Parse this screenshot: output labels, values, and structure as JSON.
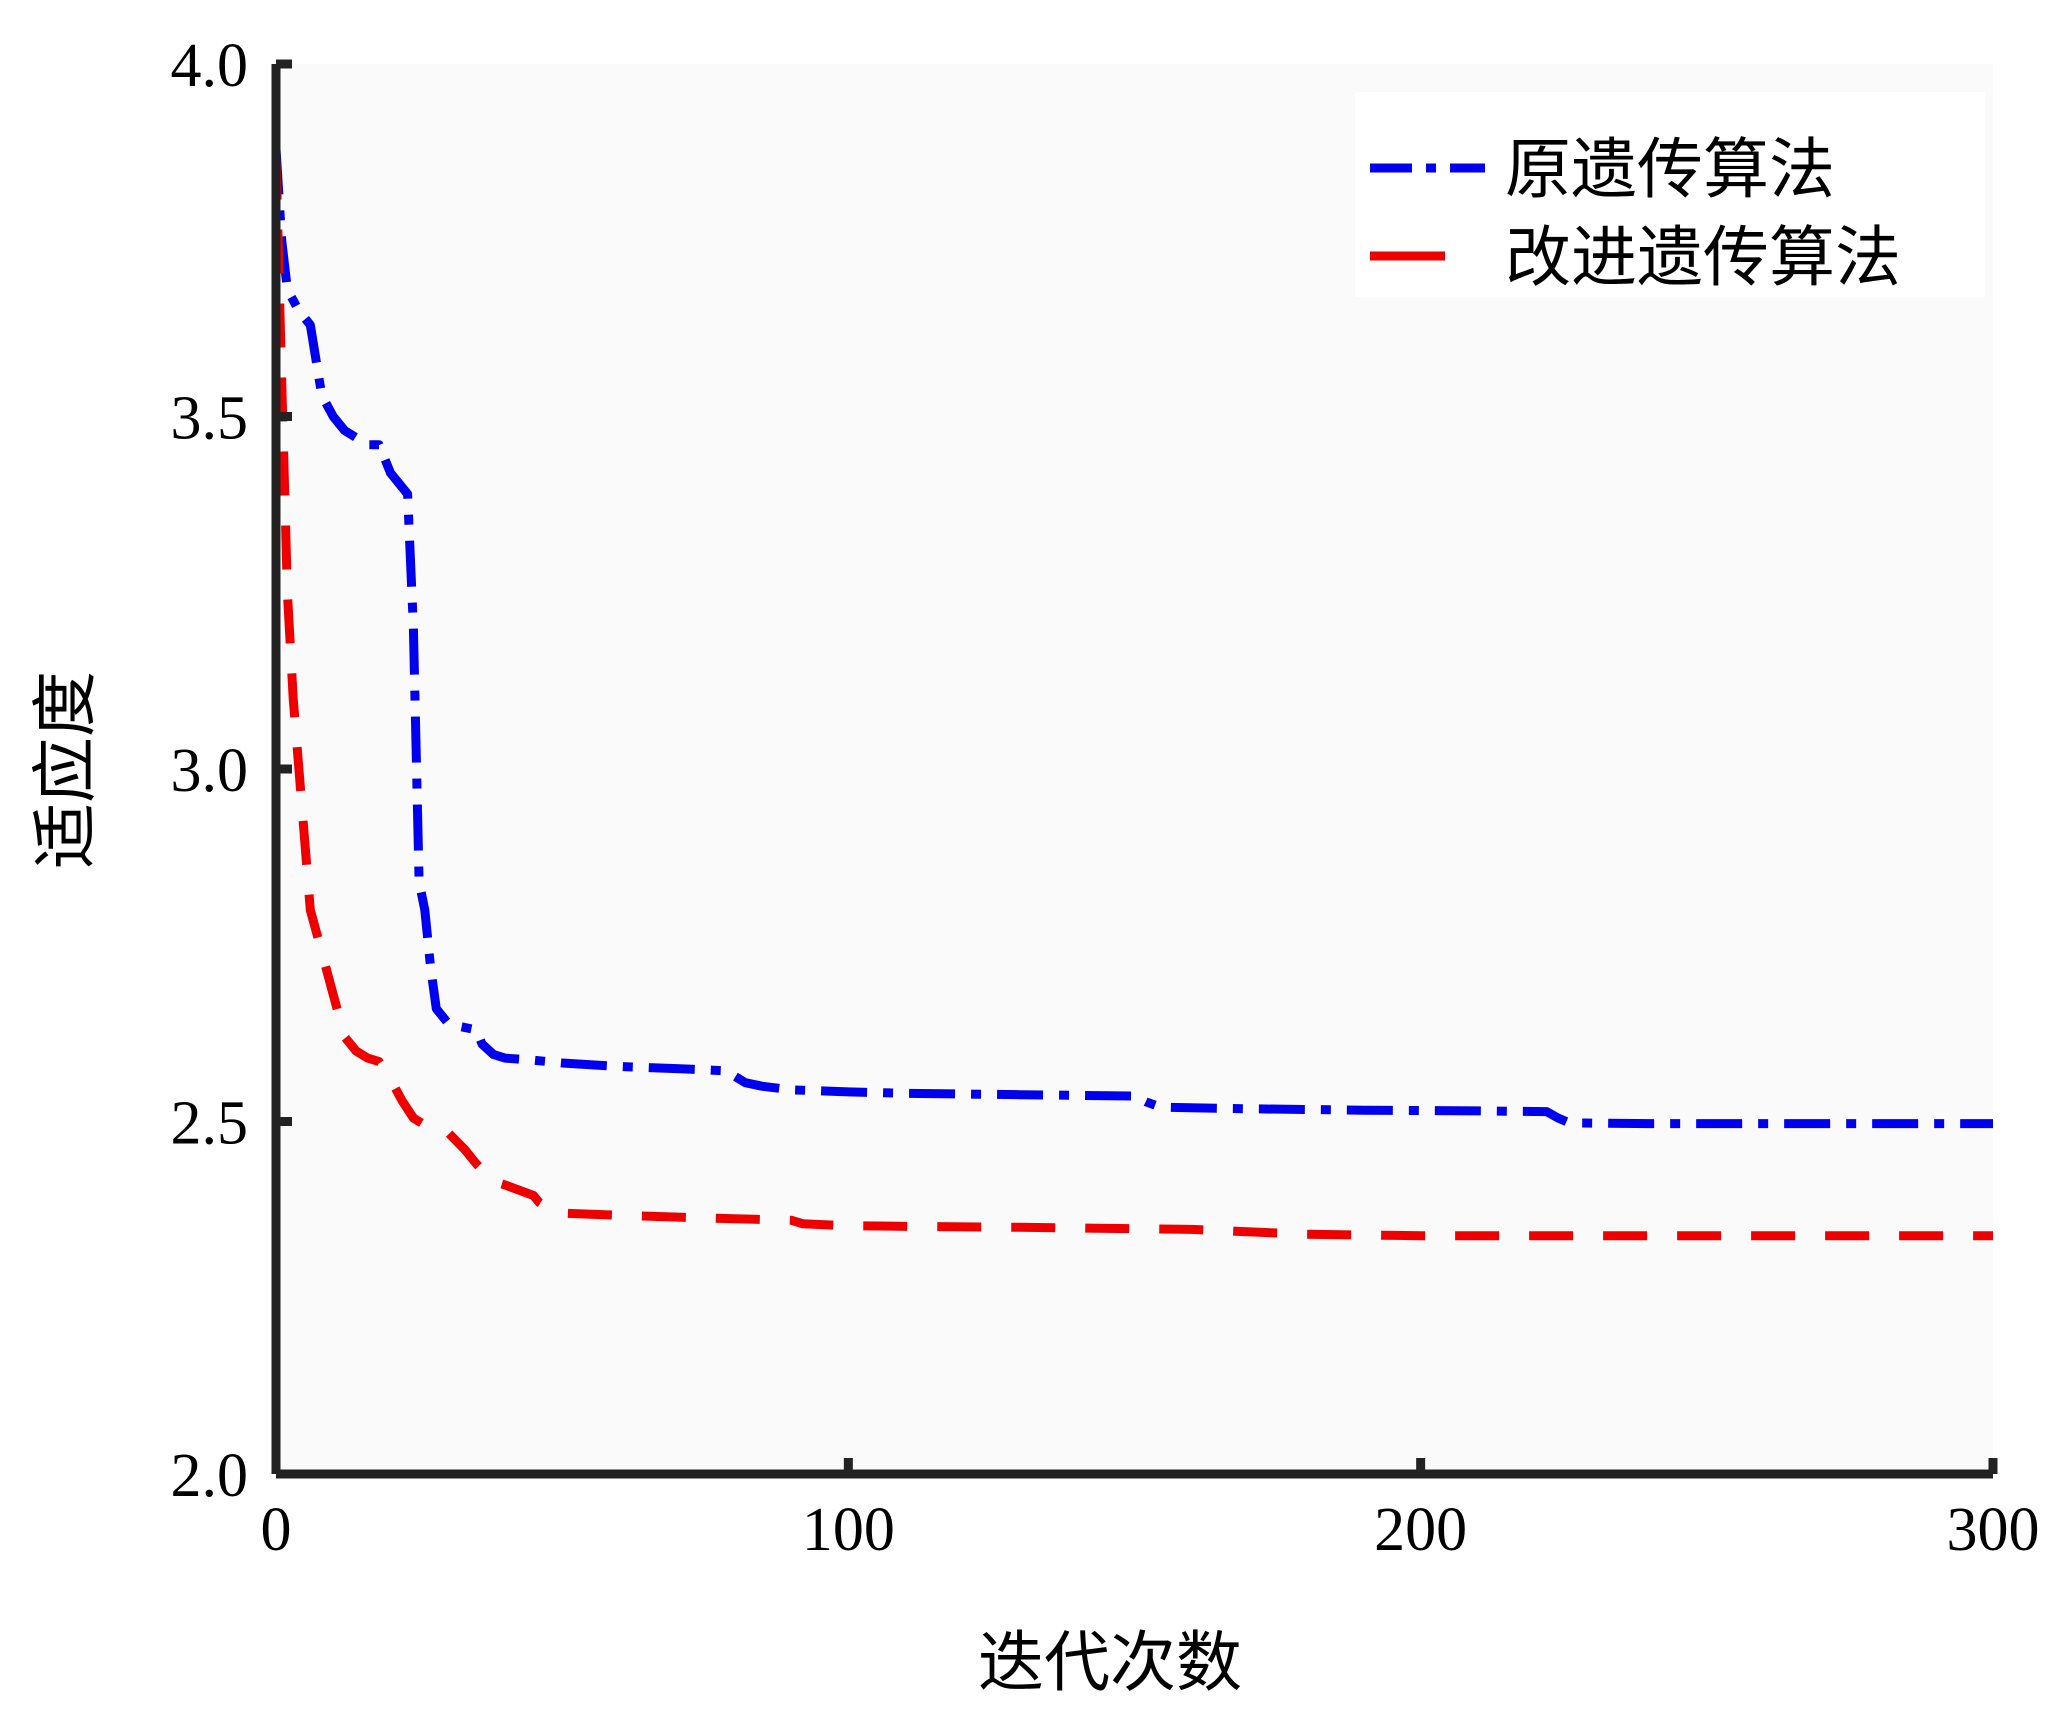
{
  "chart_data": {
    "type": "line",
    "title": "",
    "xlabel": "迭代次数",
    "ylabel": "适应度",
    "xlim": [
      0,
      300
    ],
    "ylim": [
      2.0,
      4.0
    ],
    "xticks": [
      0,
      100,
      200,
      300
    ],
    "xtick_labels": [
      "0",
      "100",
      "200",
      "300"
    ],
    "yticks": [
      2.0,
      2.5,
      3.0,
      3.5,
      4.0
    ],
    "ytick_labels": [
      "2.0",
      "2.5",
      "3.0",
      "3.5",
      "4.0"
    ],
    "grid": false,
    "legend_position": "top-right",
    "series": [
      {
        "name": "原遗传算法",
        "color": "#0000ee",
        "dash": "dash-dot",
        "x": [
          0,
          1,
          2,
          4,
          6,
          8,
          10,
          12,
          14,
          16,
          18,
          20,
          22,
          23,
          24,
          25,
          26,
          27,
          28,
          30,
          32,
          35,
          36,
          38,
          40,
          45,
          50,
          60,
          70,
          78,
          80,
          82,
          85,
          90,
          100,
          110,
          120,
          130,
          140,
          150,
          152,
          154,
          156,
          170,
          190,
          210,
          222,
          224,
          226,
          240,
          260,
          280,
          300
        ],
        "y": [
          3.88,
          3.75,
          3.68,
          3.65,
          3.63,
          3.53,
          3.5,
          3.48,
          3.47,
          3.46,
          3.46,
          3.42,
          3.4,
          3.39,
          3.2,
          2.84,
          2.8,
          2.72,
          2.66,
          2.64,
          2.635,
          2.63,
          2.61,
          2.595,
          2.59,
          2.587,
          2.583,
          2.578,
          2.575,
          2.572,
          2.565,
          2.555,
          2.55,
          2.545,
          2.542,
          2.54,
          2.539,
          2.538,
          2.537,
          2.536,
          2.528,
          2.522,
          2.52,
          2.518,
          2.516,
          2.515,
          2.514,
          2.505,
          2.498,
          2.497,
          2.497,
          2.497,
          2.497
        ]
      },
      {
        "name": "改进遗传算法",
        "color": "#ee0000",
        "dash": "dash",
        "x": [
          0,
          1,
          2,
          3,
          4,
          5,
          6,
          7,
          8,
          10,
          12,
          14,
          16,
          18,
          20,
          22,
          24,
          26,
          28,
          30,
          33,
          35,
          38,
          40,
          45,
          46,
          48,
          50,
          60,
          80,
          90,
          92,
          100,
          130,
          160,
          180,
          200,
          240,
          270,
          300
        ],
        "y": [
          3.87,
          3.55,
          3.25,
          3.1,
          3.0,
          2.9,
          2.8,
          2.77,
          2.74,
          2.68,
          2.62,
          2.6,
          2.59,
          2.585,
          2.56,
          2.53,
          2.505,
          2.495,
          2.49,
          2.485,
          2.46,
          2.44,
          2.415,
          2.41,
          2.395,
          2.385,
          2.375,
          2.37,
          2.367,
          2.362,
          2.36,
          2.355,
          2.352,
          2.35,
          2.347,
          2.34,
          2.338,
          2.338,
          2.338,
          2.338
        ]
      }
    ]
  }
}
